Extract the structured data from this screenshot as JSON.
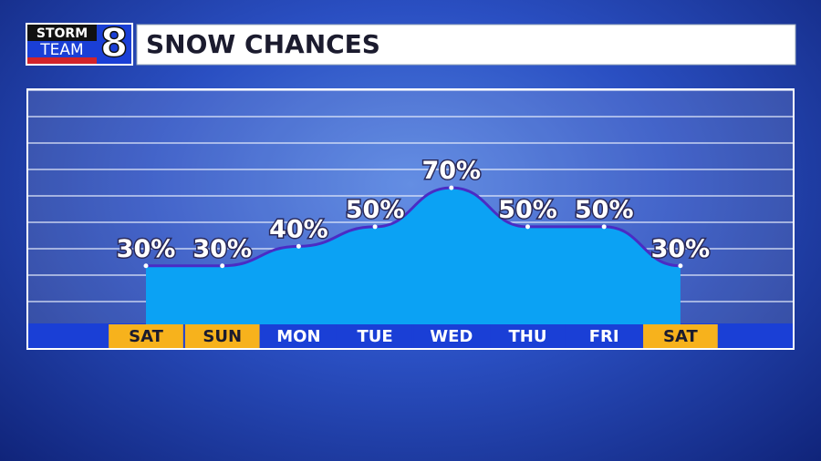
{
  "logo": {
    "top": "STORM",
    "bottom": "TEAM",
    "number": "8"
  },
  "chart_data": {
    "type": "area",
    "title": "SNOW CHANCES",
    "categories": [
      "SAT",
      "SUN",
      "MON",
      "TUE",
      "WED",
      "THU",
      "FRI",
      "SAT"
    ],
    "values": [
      30,
      30,
      40,
      50,
      70,
      50,
      50,
      30
    ],
    "value_labels": [
      "30%",
      "30%",
      "40%",
      "50%",
      "70%",
      "50%",
      "50%",
      "30%"
    ],
    "category_colors": [
      "#f7b21c",
      "#f7b21c",
      "#1a3fd6",
      "#1a3fd6",
      "#1a3fd6",
      "#1a3fd6",
      "#1a3fd6",
      "#f7b21c"
    ],
    "color": "#0ba2f4",
    "line_color": "#4a2cc4",
    "ylim": [
      0,
      120
    ]
  }
}
